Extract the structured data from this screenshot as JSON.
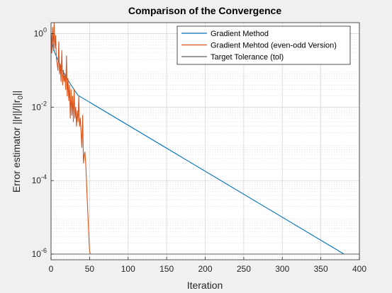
{
  "chart_data": {
    "type": "line",
    "title": "Comparison of the Convergence",
    "xlabel": "Iteration",
    "ylabel_main": "Error estimator ||r||/||r",
    "ylabel_sub": "0",
    "ylabel_end": "||",
    "xlim": [
      0,
      400
    ],
    "ylim": [
      7e-07,
      2
    ],
    "yscale": "log",
    "grid": true,
    "minor_grid": true,
    "legend_position": "top-right",
    "x_ticks": [
      0,
      50,
      100,
      150,
      200,
      250,
      300,
      350,
      400
    ],
    "x_tick_labels": [
      "0",
      "50",
      "100",
      "150",
      "200",
      "250",
      "300",
      "350",
      "400"
    ],
    "y_ticks": [
      1e-06,
      0.0001,
      0.01,
      1
    ],
    "y_tick_labels": [
      {
        "base": "10",
        "exp": "-6"
      },
      {
        "base": "10",
        "exp": "-4"
      },
      {
        "base": "10",
        "exp": "-2"
      },
      {
        "base": "10",
        "exp": "0"
      }
    ],
    "series": [
      {
        "name": "Gradient Method",
        "color": "#0072BD",
        "x": [
          0,
          1,
          3,
          5,
          7,
          10,
          15,
          20,
          25,
          30,
          35,
          380
        ],
        "y": [
          1.0,
          0.55,
          0.4,
          0.3,
          0.24,
          0.17,
          0.1,
          0.064,
          0.043,
          0.03,
          0.021,
          1e-06
        ]
      },
      {
        "name": "Gradient Mehtod (even-odd Version)",
        "color": "#D95319",
        "x": [
          0,
          1,
          2,
          3,
          4,
          5,
          6,
          7,
          8,
          9,
          10,
          11,
          12,
          13,
          14,
          15,
          16,
          17,
          18,
          19,
          20,
          21,
          22,
          23,
          24,
          25,
          26,
          27,
          28,
          29,
          30,
          31,
          32,
          33,
          34,
          35,
          36,
          37,
          38,
          39,
          40,
          41,
          42,
          43,
          44,
          45,
          46,
          47,
          48,
          49,
          50,
          51
        ],
        "y": [
          1.0,
          0.3,
          1.5,
          0.35,
          2.0,
          0.4,
          0.9,
          0.2,
          0.15,
          0.1,
          0.6,
          0.08,
          0.15,
          0.05,
          0.35,
          0.04,
          0.1,
          0.05,
          0.08,
          0.03,
          0.25,
          0.02,
          0.06,
          0.015,
          0.04,
          0.005,
          0.03,
          0.006,
          0.02,
          0.004,
          0.03,
          0.005,
          0.01,
          0.003,
          0.008,
          0.004,
          0.02,
          0.003,
          0.005,
          0.002,
          0.0008,
          0.006,
          0.0003,
          0.0005,
          0.0006,
          0.0003,
          0.0001,
          3e-05,
          1e-05,
          3e-06,
          1.2e-06,
          1e-06
        ]
      },
      {
        "name": "Target Tolerance (tol)",
        "color": "#606060",
        "x": [
          0,
          400
        ],
        "y": [
          1e-06,
          1e-06
        ]
      }
    ]
  }
}
